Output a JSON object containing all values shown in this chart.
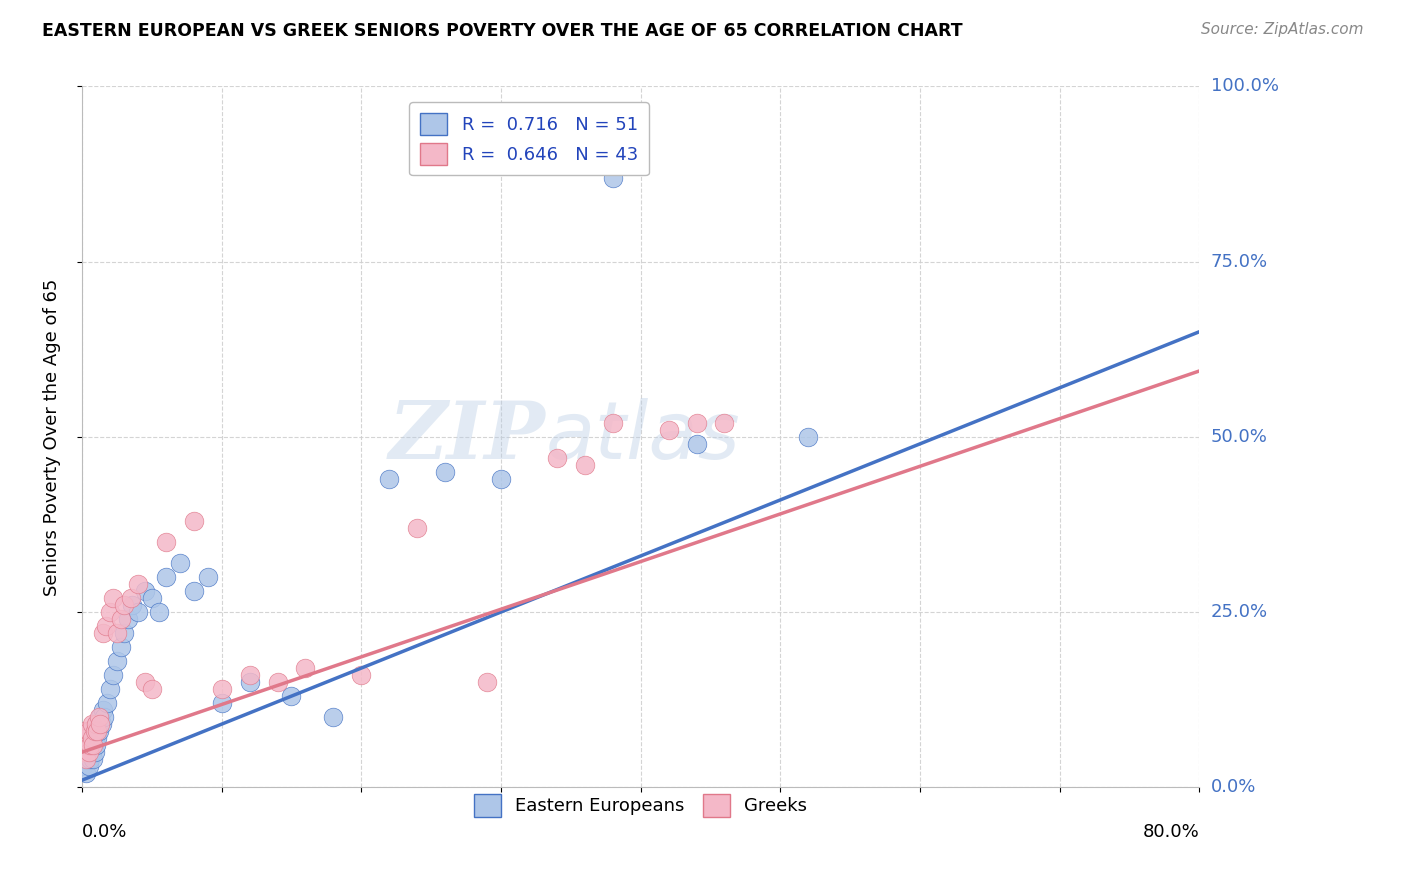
{
  "title": "EASTERN EUROPEAN VS GREEK SENIORS POVERTY OVER THE AGE OF 65 CORRELATION CHART",
  "source": "Source: ZipAtlas.com",
  "ylabel": "Seniors Poverty Over the Age of 65",
  "watermark_part1": "ZIP",
  "watermark_part2": "atlas",
  "ee_color": "#aec6e8",
  "ee_edge_color": "#4472c4",
  "ee_line_color": "#4472c4",
  "gr_color": "#f4b8c8",
  "gr_edge_color": "#e0788a",
  "gr_line_color": "#e0788a",
  "ee_R": 0.716,
  "ee_N": 51,
  "gr_R": 0.646,
  "gr_N": 43,
  "xlim": [
    0.0,
    0.8
  ],
  "ylim": [
    0.0,
    1.0
  ],
  "background_color": "#ffffff",
  "grid_color": "#d0d0d0",
  "title_color": "#000000",
  "source_color": "#888888",
  "right_axis_color": "#4472c4",
  "yticks": [
    0.0,
    0.25,
    0.5,
    0.75,
    1.0
  ],
  "ytick_labels": [
    "0.0%",
    "25.0%",
    "50.0%",
    "75.0%",
    "100.0%"
  ],
  "xtick_left_label": "0.0%",
  "xtick_right_label": "80.0%",
  "legend_ee_label": "R =  0.716   N = 51",
  "legend_gr_label": "R =  0.646   N = 43",
  "bottom_legend_ee": "Eastern Europeans",
  "bottom_legend_gr": "Greeks",
  "ee_x": [
    0.001,
    0.002,
    0.002,
    0.003,
    0.003,
    0.004,
    0.004,
    0.005,
    0.005,
    0.006,
    0.006,
    0.007,
    0.007,
    0.008,
    0.008,
    0.009,
    0.009,
    0.01,
    0.01,
    0.011,
    0.012,
    0.013,
    0.014,
    0.015,
    0.016,
    0.018,
    0.02,
    0.022,
    0.025,
    0.028,
    0.03,
    0.033,
    0.036,
    0.04,
    0.045,
    0.05,
    0.055,
    0.06,
    0.07,
    0.08,
    0.09,
    0.1,
    0.12,
    0.15,
    0.18,
    0.22,
    0.26,
    0.3,
    0.38,
    0.44,
    0.52
  ],
  "ee_y": [
    0.03,
    0.04,
    0.06,
    0.02,
    0.05,
    0.04,
    0.07,
    0.03,
    0.06,
    0.04,
    0.07,
    0.05,
    0.08,
    0.04,
    0.06,
    0.05,
    0.08,
    0.06,
    0.09,
    0.07,
    0.08,
    0.1,
    0.09,
    0.11,
    0.1,
    0.12,
    0.14,
    0.16,
    0.18,
    0.2,
    0.22,
    0.24,
    0.26,
    0.25,
    0.28,
    0.27,
    0.25,
    0.3,
    0.32,
    0.28,
    0.3,
    0.12,
    0.15,
    0.13,
    0.1,
    0.44,
    0.45,
    0.44,
    0.87,
    0.49,
    0.5
  ],
  "gr_x": [
    0.001,
    0.002,
    0.002,
    0.003,
    0.003,
    0.004,
    0.005,
    0.005,
    0.006,
    0.007,
    0.007,
    0.008,
    0.009,
    0.01,
    0.011,
    0.012,
    0.013,
    0.015,
    0.017,
    0.02,
    0.022,
    0.025,
    0.028,
    0.03,
    0.035,
    0.04,
    0.045,
    0.05,
    0.06,
    0.08,
    0.1,
    0.12,
    0.14,
    0.16,
    0.2,
    0.24,
    0.29,
    0.34,
    0.36,
    0.38,
    0.42,
    0.44,
    0.46
  ],
  "gr_y": [
    0.05,
    0.06,
    0.08,
    0.04,
    0.07,
    0.06,
    0.05,
    0.08,
    0.06,
    0.07,
    0.09,
    0.06,
    0.08,
    0.09,
    0.08,
    0.1,
    0.09,
    0.22,
    0.23,
    0.25,
    0.27,
    0.22,
    0.24,
    0.26,
    0.27,
    0.29,
    0.15,
    0.14,
    0.35,
    0.38,
    0.14,
    0.16,
    0.15,
    0.17,
    0.16,
    0.37,
    0.15,
    0.47,
    0.46,
    0.52,
    0.51,
    0.52,
    0.52
  ]
}
